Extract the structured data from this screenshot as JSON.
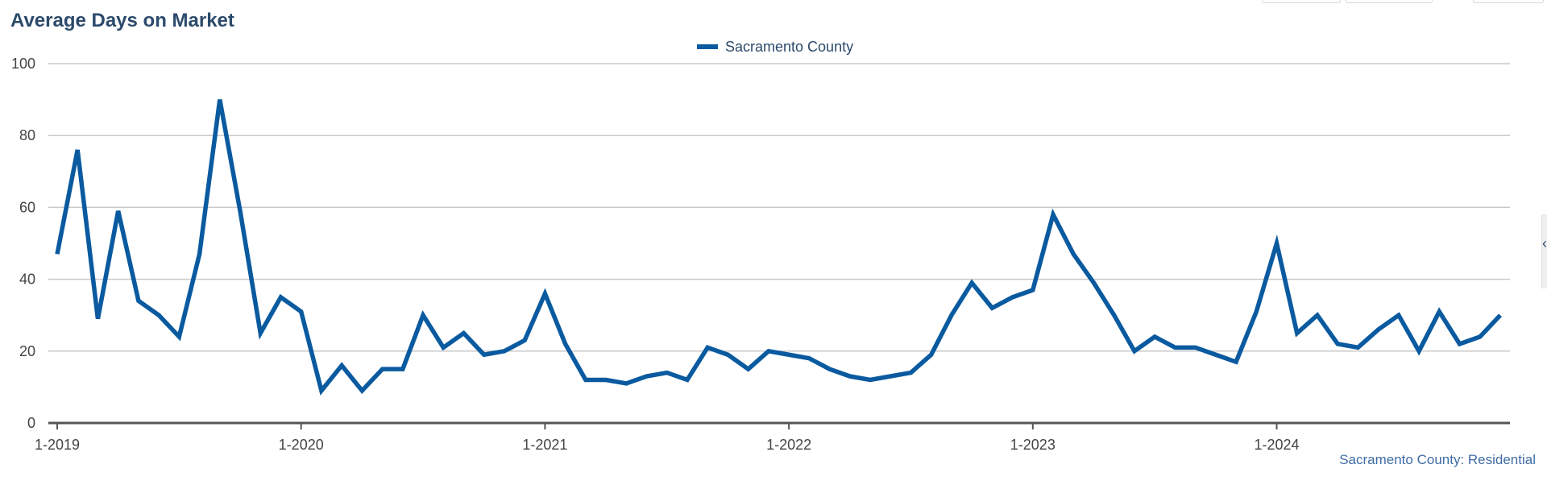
{
  "chart_data": {
    "type": "line",
    "title": "Average Days on Market",
    "xlabel": "",
    "ylabel": "",
    "ylim": [
      0,
      100
    ],
    "yticks": [
      "0",
      "20",
      "40",
      "60",
      "80",
      "100"
    ],
    "xticks": [
      "1-2019",
      "1-2020",
      "1-2021",
      "1-2022",
      "1-2023",
      "1-2024"
    ],
    "grid": true,
    "legend_position": "top-center",
    "credit": "Sacramento County: Residential",
    "colors": {
      "series": "#0a5aa0",
      "grid": "#c8c8c8",
      "axis": "#555555",
      "title": "#2c4a6b"
    },
    "series": [
      {
        "name": "Sacramento County",
        "x": [
          "1-2019",
          "2-2019",
          "3-2019",
          "4-2019",
          "5-2019",
          "6-2019",
          "7-2019",
          "8-2019",
          "9-2019",
          "10-2019",
          "11-2019",
          "12-2019",
          "1-2020",
          "2-2020",
          "3-2020",
          "4-2020",
          "5-2020",
          "6-2020",
          "7-2020",
          "8-2020",
          "9-2020",
          "10-2020",
          "11-2020",
          "12-2020",
          "1-2021",
          "2-2021",
          "3-2021",
          "4-2021",
          "5-2021",
          "6-2021",
          "7-2021",
          "8-2021",
          "9-2021",
          "10-2021",
          "11-2021",
          "12-2021",
          "1-2022",
          "2-2022",
          "3-2022",
          "4-2022",
          "5-2022",
          "6-2022",
          "7-2022",
          "8-2022",
          "9-2022",
          "10-2022",
          "11-2022",
          "12-2022",
          "1-2023",
          "2-2023",
          "3-2023",
          "4-2023",
          "5-2023",
          "6-2023",
          "7-2023",
          "8-2023",
          "9-2023",
          "10-2023",
          "11-2023",
          "12-2023",
          "1-2024",
          "2-2024",
          "3-2024",
          "4-2024",
          "5-2024",
          "6-2024",
          "7-2024",
          "8-2024",
          "9-2024",
          "10-2024",
          "11-2024",
          "12-2024"
        ],
        "values": [
          47,
          76,
          29,
          59,
          34,
          30,
          24,
          47,
          90,
          59,
          25,
          35,
          31,
          9,
          16,
          9,
          15,
          15,
          30,
          21,
          25,
          19,
          20,
          23,
          36,
          22,
          12,
          12,
          11,
          13,
          14,
          12,
          21,
          19,
          15,
          20,
          19,
          18,
          15,
          13,
          12,
          13,
          14,
          19,
          30,
          39,
          32,
          35,
          37,
          58,
          47,
          39,
          30,
          20,
          24,
          21,
          21,
          19,
          17,
          31,
          50,
          25,
          30,
          22,
          21,
          26,
          30,
          20,
          31,
          22,
          24,
          30
        ]
      }
    ]
  }
}
